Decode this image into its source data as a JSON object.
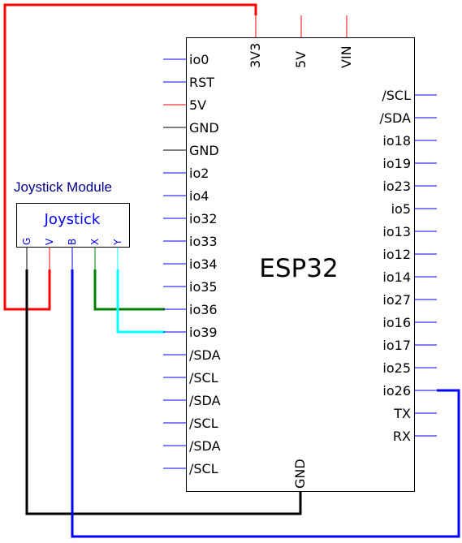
{
  "chip": {
    "name": "ESP32",
    "top_pins": [
      {
        "label": "3V3",
        "color": "#ff0000"
      },
      {
        "label": "5V",
        "color": "#ff0000"
      },
      {
        "label": "VIN",
        "color": "#ff0000"
      }
    ],
    "left_pins": [
      {
        "label": "io0",
        "color": "#0000ff"
      },
      {
        "label": "RST",
        "color": "#0000ff"
      },
      {
        "label": "5V",
        "color": "#ff0000"
      },
      {
        "label": "GND",
        "color": "#000000"
      },
      {
        "label": "GND",
        "color": "#000000"
      },
      {
        "label": "io2",
        "color": "#0000ff"
      },
      {
        "label": "io4",
        "color": "#0000ff"
      },
      {
        "label": "io32",
        "color": "#0000ff"
      },
      {
        "label": "io33",
        "color": "#0000ff"
      },
      {
        "label": "io34",
        "color": "#0000ff"
      },
      {
        "label": "io35",
        "color": "#0000ff"
      },
      {
        "label": "io36",
        "color": "#0000ff"
      },
      {
        "label": "io39",
        "color": "#0000ff"
      },
      {
        "label": "/SDA",
        "color": "#0000ff"
      },
      {
        "label": "/SCL",
        "color": "#0000ff"
      },
      {
        "label": "/SDA",
        "color": "#0000ff"
      },
      {
        "label": "/SCL",
        "color": "#0000ff"
      },
      {
        "label": "/SDA",
        "color": "#0000ff"
      },
      {
        "label": "/SCL",
        "color": "#0000ff"
      }
    ],
    "right_pins": [
      {
        "label": "/SCL",
        "color": "#0000ff"
      },
      {
        "label": "/SDA",
        "color": "#0000ff"
      },
      {
        "label": "io18",
        "color": "#0000ff"
      },
      {
        "label": "io19",
        "color": "#0000ff"
      },
      {
        "label": "io23",
        "color": "#0000ff"
      },
      {
        "label": "io5",
        "color": "#0000ff"
      },
      {
        "label": "io13",
        "color": "#0000ff"
      },
      {
        "label": "io12",
        "color": "#0000ff"
      },
      {
        "label": "io14",
        "color": "#0000ff"
      },
      {
        "label": "io27",
        "color": "#0000ff"
      },
      {
        "label": "io16",
        "color": "#0000ff"
      },
      {
        "label": "io17",
        "color": "#0000ff"
      },
      {
        "label": "io25",
        "color": "#0000ff"
      },
      {
        "label": "io26",
        "color": "#0000ff"
      },
      {
        "label": "TX",
        "color": "#0000ff"
      },
      {
        "label": "RX",
        "color": "#0000ff"
      }
    ],
    "bottom_pin": {
      "label": "GND",
      "color": "#000000"
    }
  },
  "module": {
    "title": "Joystick Module",
    "name": "Joystick",
    "pins": [
      {
        "label": "G",
        "color": "#000000"
      },
      {
        "label": "V",
        "color": "#ff0000"
      },
      {
        "label": "B",
        "color": "#0000ff"
      },
      {
        "label": "X",
        "color": "#008000"
      },
      {
        "label": "Y",
        "color": "#00ffff"
      }
    ]
  },
  "wires": [
    {
      "from": "Joystick V",
      "to": "ESP32 3V3",
      "color": "#ff0000"
    },
    {
      "from": "Joystick G",
      "to": "ESP32 GND",
      "color": "#000000"
    },
    {
      "from": "Joystick B",
      "to": "ESP32 io26",
      "color": "#0000ff"
    },
    {
      "from": "Joystick X",
      "to": "ESP32 io36",
      "color": "#008000"
    },
    {
      "from": "Joystick Y",
      "to": "ESP32 io39",
      "color": "#00ffff"
    }
  ]
}
